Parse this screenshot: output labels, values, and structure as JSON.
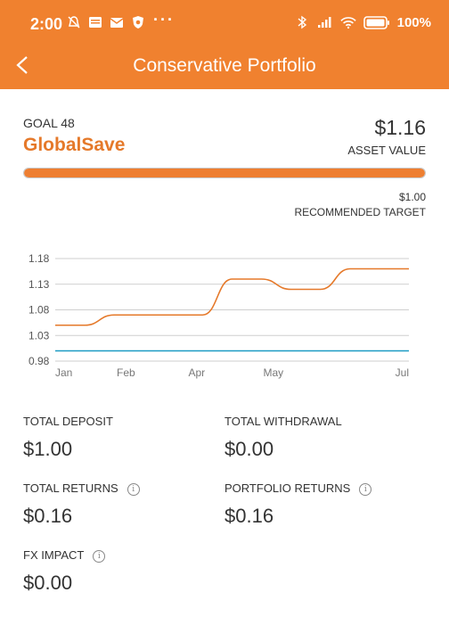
{
  "status_bar": {
    "time": "2:00",
    "battery": "100%",
    "more_dots": "···",
    "icons_left": [
      "alarm-off-icon",
      "news-icon",
      "mail-icon",
      "shield-icon"
    ],
    "icons_right": [
      "bluetooth-icon",
      "signal-icon",
      "wifi-icon",
      "battery-icon"
    ]
  },
  "header": {
    "title": "Conservative Portfolio",
    "back_icon": "back-arrow-icon"
  },
  "goal": {
    "label": "GOAL 48",
    "name": "GlobalSave",
    "asset_value": "$1.16",
    "asset_label": "ASSET VALUE",
    "progress_fraction": 1.0,
    "target_value": "$1.00",
    "target_label": "RECOMMENDED TARGET"
  },
  "colors": {
    "accent": "#F0812F",
    "line": "#E5792A",
    "target_line": "#1C9BC4"
  },
  "chart_data": {
    "type": "line",
    "x_ticks": [
      "Jan",
      "Feb",
      "Apr",
      "May",
      "Jul"
    ],
    "y_ticks": [
      "0.98",
      "1.03",
      "1.08",
      "1.13",
      "1.18"
    ],
    "ylim": [
      0.98,
      1.18
    ],
    "grid": true,
    "series": [
      {
        "x": [
          0,
          1,
          2,
          3,
          4,
          5,
          6,
          7,
          8,
          9,
          10,
          11,
          12
        ],
        "values": [
          1.05,
          1.05,
          1.07,
          1.07,
          1.07,
          1.07,
          1.14,
          1.14,
          1.12,
          1.12,
          1.16,
          1.16,
          1.16
        ],
        "color": "#E5792A"
      },
      {
        "x": [
          0,
          12
        ],
        "values": [
          1.0,
          1.0
        ],
        "color": "#1C9BC4"
      }
    ]
  },
  "stats": {
    "total_deposit_label": "TOTAL DEPOSIT",
    "total_deposit_value": "$1.00",
    "total_withdrawal_label": "TOTAL WITHDRAWAL",
    "total_withdrawal_value": "$0.00",
    "total_returns_label": "TOTAL RETURNS",
    "total_returns_value": "$0.16",
    "portfolio_returns_label": "PORTFOLIO RETURNS",
    "portfolio_returns_value": "$0.16",
    "fx_impact_label": "FX IMPACT",
    "fx_impact_value": "$0.00",
    "info_glyph": "i"
  }
}
